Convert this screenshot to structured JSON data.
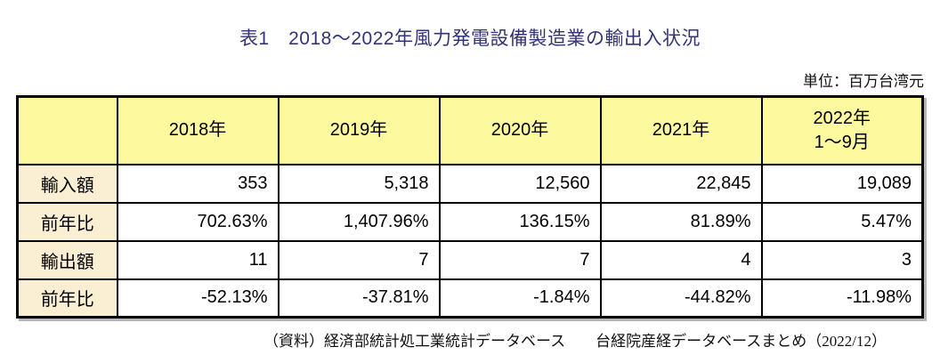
{
  "title": {
    "text": "表1　2018～2022年風力発電設備製造業の輸出入状況",
    "color": "#333377"
  },
  "unit_label": "単位：百万台湾元",
  "table": {
    "corner_label": "",
    "columns": [
      "2018年",
      "2019年",
      "2020年",
      "2021年",
      "2022年\n1～9月"
    ],
    "rows": [
      {
        "label": "輸入額",
        "values": [
          "353",
          "5,318",
          "12,560",
          "22,845",
          "19,089"
        ]
      },
      {
        "label": "前年比",
        "values": [
          "702.63%",
          "1,407.96%",
          "136.15%",
          "81.89%",
          "5.47%"
        ]
      },
      {
        "label": "輸出額",
        "values": [
          "11",
          "7",
          "7",
          "4",
          "3"
        ]
      },
      {
        "label": "前年比",
        "values": [
          "-52.13%",
          "-37.81%",
          "-1.84%",
          "-44.82%",
          "-11.98%"
        ]
      }
    ],
    "colors": {
      "header_bg": "#FDF99F",
      "label_bg": "#FAEED3",
      "border": "#000000",
      "title_text": "#333377"
    }
  },
  "footer": {
    "source_note": "（資料）経済部統計処工業統計データベース　　台経院産経データベースまとめ（2022/12）"
  },
  "chart_data": {
    "type": "table",
    "title": "表1　2018～2022年風力発電設備製造業の輸出入状況",
    "unit": "百万台湾元",
    "columns": [
      "2018年",
      "2019年",
      "2020年",
      "2021年",
      "2022年 1～9月"
    ],
    "rows": [
      {
        "label": "輸入額",
        "values": [
          353,
          5318,
          12560,
          22845,
          19089
        ]
      },
      {
        "label": "前年比",
        "values": [
          "702.63%",
          "1,407.96%",
          "136.15%",
          "81.89%",
          "5.47%"
        ]
      },
      {
        "label": "輸出額",
        "values": [
          11,
          7,
          7,
          4,
          3
        ]
      },
      {
        "label": "前年比",
        "values": [
          "-52.13%",
          "-37.81%",
          "-1.84%",
          "-44.82%",
          "-11.98%"
        ]
      }
    ],
    "source": "（資料）経済部統計処工業統計データベース　台経院産経データベースまとめ（2022/12）"
  }
}
